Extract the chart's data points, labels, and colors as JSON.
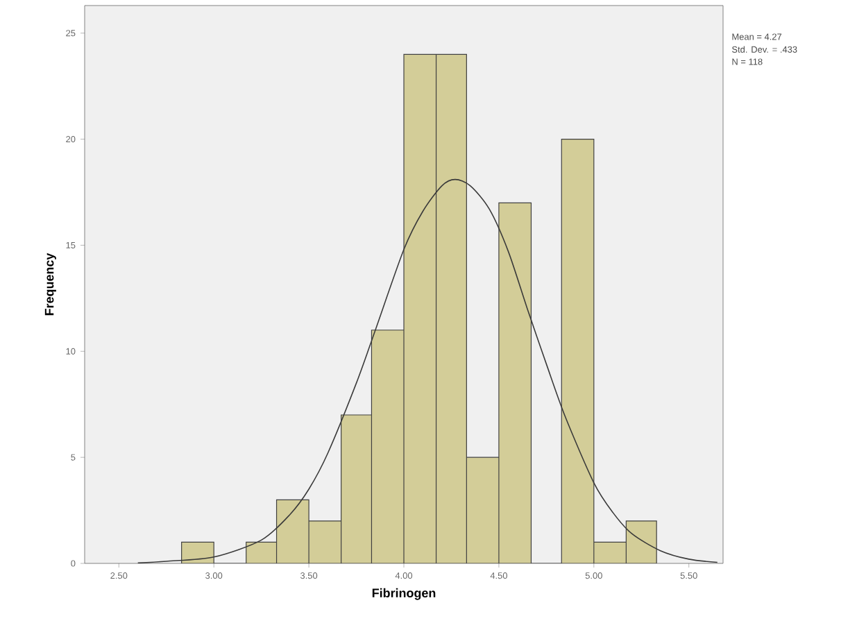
{
  "chart_data": {
    "type": "histogram",
    "xlabel": "Fibrinogen",
    "ylabel": "Frequency",
    "bins": [
      2.83,
      3.0,
      3.17,
      3.33,
      3.5,
      3.67,
      3.83,
      4.0,
      4.17,
      4.33,
      4.5,
      4.67,
      4.83,
      5.0,
      5.17,
      5.33
    ],
    "values": [
      1,
      0,
      1,
      3,
      2,
      7,
      11,
      24,
      24,
      5,
      17,
      0,
      20,
      1,
      2
    ],
    "color": "#d3cd98",
    "series": [
      {
        "type": "line",
        "color": "#3a3a3a",
        "x": [
          2.6,
          2.75,
          3.0,
          3.25,
          3.4,
          3.5,
          3.6,
          3.75,
          3.85,
          4.0,
          4.1,
          4.2,
          4.27,
          4.35,
          4.45,
          4.55,
          4.65,
          4.75,
          4.85,
          5.0,
          5.1,
          5.2,
          5.35,
          5.5,
          5.65
        ],
        "values": [
          0.02,
          0.1,
          0.3,
          1.1,
          2.3,
          3.5,
          5.2,
          8.5,
          11,
          14.8,
          16.6,
          17.8,
          18.1,
          17.8,
          16.7,
          14.7,
          12,
          9.4,
          6.9,
          3.8,
          2.4,
          1.4,
          0.6,
          0.2,
          0.05
        ]
      }
    ],
    "xlim": [
      2.32,
      5.68
    ],
    "ylim": [
      0,
      26.3
    ],
    "xticks": [
      {
        "value": 2.5,
        "label": "2.50"
      },
      {
        "value": 3.0,
        "label": "3.00"
      },
      {
        "value": 3.5,
        "label": "3.50"
      },
      {
        "value": 4.0,
        "label": "4.00"
      },
      {
        "value": 4.5,
        "label": "4.50"
      },
      {
        "value": 5.0,
        "label": "5.00"
      },
      {
        "value": 5.5,
        "label": "5.50"
      }
    ],
    "yticks": [
      0,
      5,
      10,
      15,
      20,
      25
    ],
    "annotations": [
      "Mean = 4.27",
      "Std. Dev. = .433",
      "N = 118"
    ]
  }
}
